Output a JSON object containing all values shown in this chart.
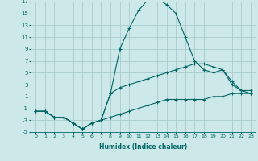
{
  "xlabel": "Humidex (Indice chaleur)",
  "xlim": [
    -0.5,
    23.5
  ],
  "ylim": [
    -5,
    17
  ],
  "yticks": [
    -5,
    -3,
    -1,
    1,
    3,
    5,
    7,
    9,
    11,
    13,
    15,
    17
  ],
  "xticks": [
    0,
    1,
    2,
    3,
    4,
    5,
    6,
    7,
    8,
    9,
    10,
    11,
    12,
    13,
    14,
    15,
    16,
    17,
    18,
    19,
    20,
    21,
    22,
    23
  ],
  "background_color": "#cce8e8",
  "grid_color": "#aacccc",
  "line_color": "#006666",
  "hours": [
    0,
    1,
    2,
    3,
    4,
    5,
    6,
    7,
    8,
    9,
    10,
    11,
    12,
    13,
    14,
    15,
    16,
    17,
    18,
    19,
    20,
    21,
    22,
    23
  ],
  "line_max": [
    -1.5,
    -1.5,
    -2.5,
    -2.5,
    -3.5,
    -4.5,
    -3.5,
    -3.0,
    1.5,
    9.0,
    12.5,
    15.5,
    17.3,
    17.5,
    16.5,
    15.0,
    11.0,
    7.0,
    5.5,
    5.0,
    5.5,
    3.0,
    2.0,
    1.5
  ],
  "line_mid": [
    -1.5,
    -1.5,
    -2.5,
    -2.5,
    -3.5,
    -4.5,
    -3.5,
    -3.0,
    1.5,
    2.5,
    3.0,
    3.5,
    4.0,
    4.5,
    5.0,
    5.5,
    6.0,
    6.5,
    6.5,
    6.0,
    5.5,
    3.5,
    2.0,
    2.0
  ],
  "line_min": [
    -1.5,
    -1.5,
    -2.5,
    -2.5,
    -3.5,
    -4.5,
    -3.5,
    -3.0,
    -2.5,
    -2.0,
    -1.5,
    -1.0,
    -0.5,
    0.0,
    0.5,
    0.5,
    0.5,
    0.5,
    0.5,
    1.0,
    1.0,
    1.5,
    1.5,
    1.5
  ]
}
